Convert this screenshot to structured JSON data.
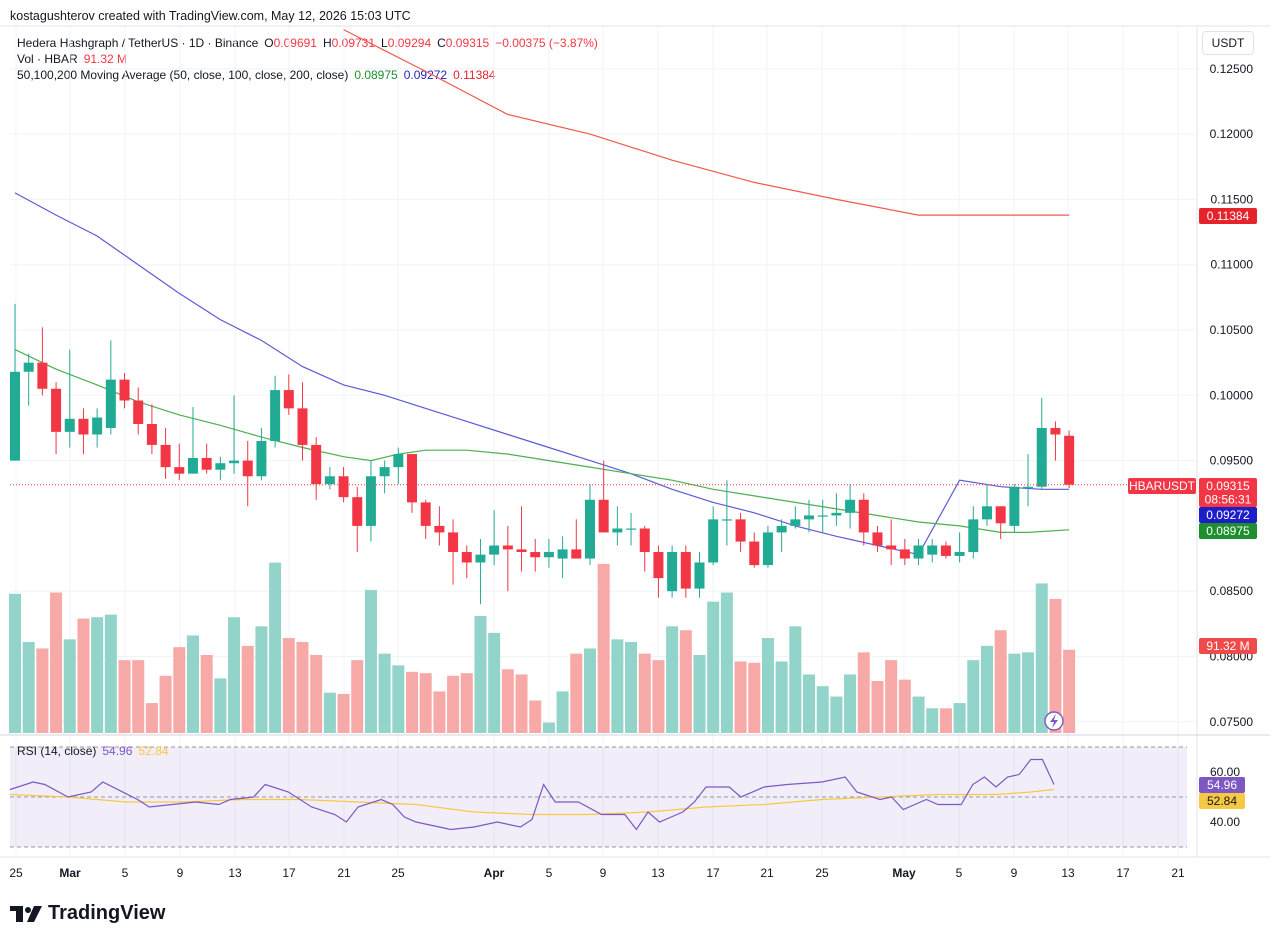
{
  "attribution": "kostagushterov created with TradingView.com, May 12, 2026 15:03 UTC",
  "header": {
    "symbol": "Hedera Hashgraph / TetherUS · 1D · Binance",
    "open_label": "O",
    "open": "0.09691",
    "high_label": "H",
    "high": "0.09731",
    "low_label": "L",
    "low": "0.09294",
    "close_label": "C",
    "close": "0.09315",
    "change": "−0.00375 (−3.87%)",
    "vol_label": "Vol · HBAR",
    "vol_value": "91.32 M",
    "ma_label": "50,100,200 Moving Average (50, close, 100, close, 200, close)",
    "ma50": "0.08975",
    "ma100": "0.09272",
    "ma200": "0.11384"
  },
  "currency": "USDT",
  "logo_text": "TradingView",
  "rsi_legend": {
    "label": "RSI (14, close)",
    "rsi": "54.96",
    "ma": "52.84"
  },
  "price_axis": {
    "ticks": [
      "0.12500",
      "0.12000",
      "0.11500",
      "0.11000",
      "0.10500",
      "0.10000",
      "0.09500",
      "0.08500",
      "0.08000",
      "0.07500"
    ],
    "tick_values": [
      0.125,
      0.12,
      0.115,
      0.11,
      0.105,
      0.1,
      0.095,
      0.085,
      0.08,
      0.075
    ],
    "ma200_badge": "0.11384",
    "symbol_badge": "HBARUSDT",
    "price_badge": "0.09315",
    "countdown_badge": "08:56:31",
    "ma100_badge": "0.09272",
    "ma50_badge": "0.08975",
    "vol_badge": "91.32 M"
  },
  "rsi_axis": {
    "ticks": [
      "60.00",
      "40.00"
    ],
    "tick_values": [
      60,
      40
    ],
    "rsi_badge": "54.96",
    "ma_badge": "52.84"
  },
  "time_axis": {
    "labels": [
      "25",
      "Mar",
      "5",
      "9",
      "13",
      "17",
      "21",
      "25",
      "Apr",
      "5",
      "9",
      "13",
      "17",
      "21",
      "25",
      "May",
      "5",
      "9",
      "13",
      "17",
      "21"
    ],
    "bold": [
      "Mar",
      "Apr",
      "May"
    ]
  },
  "colors": {
    "up": "#22ab94",
    "down": "#f23645",
    "vol_up": "#92d3ca",
    "vol_down": "#f7a9a7",
    "ma50": "#4caf50",
    "ma100": "#5b5bd6",
    "ma200": "#f05a4a",
    "rsi": "#7e57c2",
    "rsi_ma": "#f6c944"
  },
  "chart_data": {
    "type": "candlestick",
    "series_fields": [
      "open",
      "high",
      "low",
      "close",
      "volume"
    ],
    "ohlcv": [
      [
        0.095,
        0.107,
        0.095,
        0.1018,
        0.0852
      ],
      [
        0.1018,
        0.1032,
        0.0992,
        0.1025,
        0.0815
      ],
      [
        0.1025,
        0.1052,
        0.1,
        0.1005,
        0.081
      ],
      [
        0.1005,
        0.101,
        0.0955,
        0.0972,
        0.0853
      ],
      [
        0.0972,
        0.1035,
        0.096,
        0.0982,
        0.0817
      ],
      [
        0.0982,
        0.099,
        0.0955,
        0.097,
        0.0833
      ],
      [
        0.097,
        0.099,
        0.096,
        0.0983,
        0.0834
      ],
      [
        0.0975,
        0.1042,
        0.097,
        0.1012,
        0.0836
      ],
      [
        0.1012,
        0.1017,
        0.099,
        0.0996,
        0.0801
      ],
      [
        0.0996,
        0.1006,
        0.097,
        0.0978,
        0.0801
      ],
      [
        0.0978,
        0.0993,
        0.0955,
        0.0962,
        0.0768
      ],
      [
        0.0962,
        0.0975,
        0.0936,
        0.0945,
        0.0789
      ],
      [
        0.0945,
        0.0963,
        0.0935,
        0.094,
        0.0811
      ],
      [
        0.094,
        0.0991,
        0.094,
        0.0952,
        0.082
      ],
      [
        0.0952,
        0.0963,
        0.094,
        0.0943,
        0.0805
      ],
      [
        0.0943,
        0.0953,
        0.0935,
        0.0948,
        0.0787
      ],
      [
        0.0948,
        0.1,
        0.094,
        0.095,
        0.0834
      ],
      [
        0.095,
        0.0965,
        0.0915,
        0.0938,
        0.0812
      ],
      [
        0.0938,
        0.0975,
        0.0935,
        0.0965,
        0.0827
      ],
      [
        0.0965,
        0.1015,
        0.096,
        0.1004,
        0.0876
      ],
      [
        0.1004,
        0.1016,
        0.0985,
        0.099,
        0.0818
      ],
      [
        0.099,
        0.101,
        0.095,
        0.0962,
        0.0815
      ],
      [
        0.0962,
        0.0968,
        0.092,
        0.0932,
        0.0805
      ],
      [
        0.0932,
        0.0945,
        0.0928,
        0.0938,
        0.0776
      ],
      [
        0.0938,
        0.0945,
        0.0918,
        0.0922,
        0.0775
      ],
      [
        0.0922,
        0.093,
        0.088,
        0.09,
        0.0801
      ],
      [
        0.09,
        0.095,
        0.0888,
        0.0938,
        0.0855
      ],
      [
        0.0938,
        0.095,
        0.0925,
        0.0945,
        0.0806
      ],
      [
        0.0945,
        0.096,
        0.0932,
        0.0955,
        0.0797
      ],
      [
        0.0955,
        0.0955,
        0.091,
        0.0918,
        0.0792
      ],
      [
        0.0918,
        0.092,
        0.089,
        0.09,
        0.0791
      ],
      [
        0.09,
        0.0915,
        0.0885,
        0.0895,
        0.0777
      ],
      [
        0.0895,
        0.0905,
        0.0855,
        0.088,
        0.0789
      ],
      [
        0.088,
        0.0885,
        0.086,
        0.0872,
        0.0791
      ],
      [
        0.0872,
        0.089,
        0.084,
        0.0878,
        0.0835
      ],
      [
        0.0878,
        0.0912,
        0.087,
        0.0885,
        0.0822
      ],
      [
        0.0885,
        0.09,
        0.085,
        0.0882,
        0.0794
      ],
      [
        0.0882,
        0.0915,
        0.0865,
        0.088,
        0.079
      ],
      [
        0.088,
        0.089,
        0.0865,
        0.0876,
        0.077
      ],
      [
        0.0876,
        0.089,
        0.0868,
        0.088,
        0.0753
      ],
      [
        0.0875,
        0.0892,
        0.086,
        0.0882,
        0.0777
      ],
      [
        0.0882,
        0.0905,
        0.0875,
        0.0875,
        0.0806
      ],
      [
        0.0875,
        0.0932,
        0.087,
        0.092,
        0.081
      ],
      [
        0.092,
        0.095,
        0.0895,
        0.0895,
        0.0875
      ],
      [
        0.0895,
        0.0915,
        0.0885,
        0.0898,
        0.0817
      ],
      [
        0.0898,
        0.091,
        0.0885,
        0.0898,
        0.0815
      ],
      [
        0.0898,
        0.09,
        0.0865,
        0.088,
        0.0806
      ],
      [
        0.088,
        0.0885,
        0.0845,
        0.086,
        0.0801
      ],
      [
        0.085,
        0.0885,
        0.0845,
        0.088,
        0.0827
      ],
      [
        0.088,
        0.0885,
        0.0845,
        0.0852,
        0.0824
      ],
      [
        0.0852,
        0.088,
        0.0845,
        0.0872,
        0.0805
      ],
      [
        0.0872,
        0.0915,
        0.087,
        0.0905,
        0.0846
      ],
      [
        0.0905,
        0.0935,
        0.0885,
        0.0905,
        0.0853
      ],
      [
        0.0905,
        0.091,
        0.088,
        0.0888,
        0.08
      ],
      [
        0.0888,
        0.0895,
        0.0868,
        0.087,
        0.0799
      ],
      [
        0.087,
        0.09,
        0.0868,
        0.0895,
        0.0818
      ],
      [
        0.0895,
        0.0905,
        0.088,
        0.09,
        0.08
      ],
      [
        0.09,
        0.0915,
        0.0898,
        0.0905,
        0.0827
      ],
      [
        0.0905,
        0.092,
        0.0895,
        0.0908,
        0.079
      ],
      [
        0.0908,
        0.092,
        0.0895,
        0.0908,
        0.0781
      ],
      [
        0.0908,
        0.0925,
        0.09,
        0.091,
        0.0773
      ],
      [
        0.091,
        0.0932,
        0.0898,
        0.092,
        0.079
      ],
      [
        0.092,
        0.0925,
        0.0885,
        0.0895,
        0.0807
      ],
      [
        0.0895,
        0.09,
        0.088,
        0.0885,
        0.0785
      ],
      [
        0.0885,
        0.0905,
        0.087,
        0.0882,
        0.0801
      ],
      [
        0.0882,
        0.089,
        0.087,
        0.0875,
        0.0786
      ],
      [
        0.0875,
        0.089,
        0.087,
        0.0885,
        0.0773
      ],
      [
        0.0878,
        0.089,
        0.0872,
        0.0885,
        0.0764
      ],
      [
        0.0885,
        0.0888,
        0.0875,
        0.0877,
        0.0764
      ],
      [
        0.0877,
        0.0895,
        0.0872,
        0.088,
        0.0768
      ],
      [
        0.088,
        0.0915,
        0.0875,
        0.0905,
        0.0801
      ],
      [
        0.0905,
        0.0932,
        0.09,
        0.0915,
        0.0812
      ],
      [
        0.0915,
        0.0915,
        0.089,
        0.0902,
        0.0824
      ],
      [
        0.09,
        0.0932,
        0.0895,
        0.093,
        0.0806
      ],
      [
        0.093,
        0.0955,
        0.0915,
        0.093,
        0.0807
      ],
      [
        0.093,
        0.0998,
        0.0928,
        0.0975,
        0.086
      ],
      [
        0.0975,
        0.098,
        0.095,
        0.097,
        0.0848
      ],
      [
        0.0969,
        0.0973,
        0.0929,
        0.09315,
        0.0809
      ]
    ],
    "ma50": [
      [
        0,
        0.1035
      ],
      [
        3,
        0.102
      ],
      [
        6,
        0.1008
      ],
      [
        9,
        0.0995
      ],
      [
        12,
        0.0985
      ],
      [
        15,
        0.0977
      ],
      [
        18,
        0.0968
      ],
      [
        21,
        0.096
      ],
      [
        24,
        0.0953
      ],
      [
        26,
        0.095
      ],
      [
        28,
        0.0955
      ],
      [
        30,
        0.0958
      ],
      [
        33,
        0.0958
      ],
      [
        36,
        0.0955
      ],
      [
        39,
        0.095
      ],
      [
        42,
        0.0945
      ],
      [
        45,
        0.094
      ],
      [
        48,
        0.0935
      ],
      [
        51,
        0.0928
      ],
      [
        54,
        0.0923
      ],
      [
        57,
        0.0918
      ],
      [
        60,
        0.0913
      ],
      [
        63,
        0.0908
      ],
      [
        66,
        0.0903
      ],
      [
        69,
        0.09
      ],
      [
        72,
        0.0895
      ],
      [
        74,
        0.0895
      ],
      [
        77,
        0.0897
      ]
    ],
    "ma100": [
      [
        0,
        0.1155
      ],
      [
        3,
        0.1138
      ],
      [
        6,
        0.1122
      ],
      [
        9,
        0.11
      ],
      [
        12,
        0.1078
      ],
      [
        15,
        0.1058
      ],
      [
        18,
        0.1042
      ],
      [
        21,
        0.1022
      ],
      [
        24,
        0.1008
      ],
      [
        27,
        0.1
      ],
      [
        30,
        0.099
      ],
      [
        33,
        0.098
      ],
      [
        36,
        0.097
      ],
      [
        39,
        0.096
      ],
      [
        42,
        0.095
      ],
      [
        45,
        0.094
      ],
      [
        48,
        0.0928
      ],
      [
        51,
        0.0918
      ],
      [
        54,
        0.091
      ],
      [
        57,
        0.09
      ],
      [
        60,
        0.0892
      ],
      [
        63,
        0.0885
      ],
      [
        66,
        0.0878
      ],
      [
        69,
        0.0935
      ],
      [
        72,
        0.093
      ],
      [
        75,
        0.0928
      ],
      [
        77,
        0.0928
      ]
    ],
    "ma200": [
      [
        24,
        0.128
      ],
      [
        30,
        0.1248
      ],
      [
        36,
        0.1215
      ],
      [
        42,
        0.12
      ],
      [
        48,
        0.118
      ],
      [
        54,
        0.1163
      ],
      [
        60,
        0.115
      ],
      [
        66,
        0.1138
      ],
      [
        72,
        0.1138
      ],
      [
        77,
        0.1138
      ]
    ],
    "rsi": [
      [
        0,
        53
      ],
      [
        2,
        56
      ],
      [
        3,
        55
      ],
      [
        5,
        50
      ],
      [
        7,
        52
      ],
      [
        8,
        56
      ],
      [
        11,
        49
      ],
      [
        12,
        46
      ],
      [
        14,
        47
      ],
      [
        16,
        48
      ],
      [
        18,
        47
      ],
      [
        19,
        49
      ],
      [
        21,
        50
      ],
      [
        22,
        55
      ],
      [
        24,
        52
      ],
      [
        26,
        46
      ],
      [
        28,
        43
      ],
      [
        29,
        40
      ],
      [
        30,
        46
      ],
      [
        32,
        49
      ],
      [
        33,
        47
      ],
      [
        34,
        42
      ],
      [
        35,
        40
      ],
      [
        36,
        39
      ],
      [
        38,
        37
      ],
      [
        40,
        38
      ],
      [
        42,
        40
      ],
      [
        44,
        38
      ],
      [
        45,
        41
      ],
      [
        46,
        55
      ],
      [
        47,
        48
      ],
      [
        49,
        48
      ],
      [
        51,
        43
      ],
      [
        53,
        43
      ],
      [
        54,
        37
      ],
      [
        55,
        44
      ],
      [
        56,
        40
      ],
      [
        57,
        42
      ],
      [
        58,
        44
      ],
      [
        59,
        48
      ],
      [
        60,
        54
      ],
      [
        62,
        54
      ],
      [
        63,
        50
      ],
      [
        65,
        54
      ],
      [
        67,
        55
      ],
      [
        70,
        56
      ],
      [
        72,
        58
      ],
      [
        73,
        52
      ],
      [
        75,
        49
      ],
      [
        76,
        50
      ],
      [
        77,
        45
      ],
      [
        79,
        49
      ],
      [
        80,
        47
      ],
      [
        82,
        47
      ],
      [
        83,
        55
      ],
      [
        84,
        58
      ],
      [
        85,
        54
      ],
      [
        86,
        58
      ],
      [
        87,
        59
      ],
      [
        88,
        65
      ],
      [
        89,
        65
      ],
      [
        90,
        55
      ]
    ],
    "rsi_ma": [
      [
        0,
        51
      ],
      [
        5,
        50
      ],
      [
        10,
        48
      ],
      [
        15,
        48
      ],
      [
        20,
        49
      ],
      [
        25,
        49
      ],
      [
        30,
        48
      ],
      [
        35,
        47
      ],
      [
        40,
        44
      ],
      [
        45,
        43
      ],
      [
        50,
        43
      ],
      [
        55,
        44
      ],
      [
        60,
        46
      ],
      [
        65,
        47
      ],
      [
        70,
        49
      ],
      [
        75,
        50
      ],
      [
        80,
        51
      ],
      [
        85,
        51
      ],
      [
        88,
        52
      ],
      [
        90,
        53
      ]
    ],
    "price_range": [
      0.074,
      0.128
    ],
    "rsi_levels": [
      30,
      50,
      70
    ]
  }
}
